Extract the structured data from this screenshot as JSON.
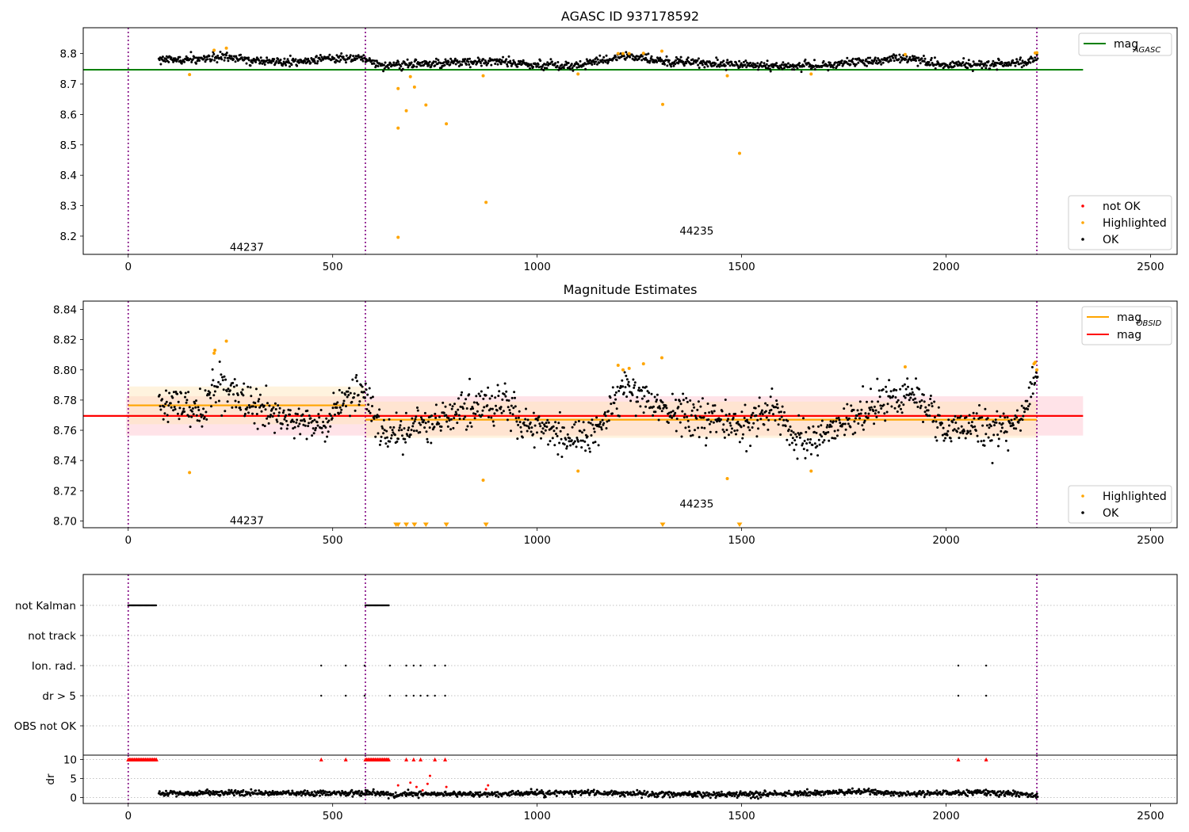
{
  "figure": {
    "colors": {
      "ok": "#000000",
      "highlighted": "#ffa500",
      "not_ok": "#ff0000",
      "mag_agasc_line": "#008000",
      "mag_line": "#ff0000",
      "mag_obsid_line": "#ffa500",
      "obs_boundary": "#800080",
      "mag_band": "#ffc0cb",
      "obsid_band": "#ffe4b5"
    }
  },
  "chart_data": [
    {
      "type": "scatter",
      "title": "AGASC ID 937178592",
      "xlabel": "",
      "ylabel": "",
      "xlim": [
        -110,
        2565
      ],
      "ylim": [
        8.14,
        8.885
      ],
      "x_ticks": [
        0,
        500,
        1000,
        1500,
        2000,
        2500
      ],
      "y_ticks": [
        8.2,
        8.3,
        8.4,
        8.5,
        8.6,
        8.7,
        8.8
      ],
      "y_tick_labels": [
        "8.2",
        "8.3",
        "8.4",
        "8.5",
        "8.6",
        "8.7",
        "8.8"
      ],
      "grid": false,
      "obs_boundaries": [
        0,
        580,
        2222
      ],
      "obsid_labels": [
        {
          "text": "44237",
          "x": 290,
          "y": 8.165
        },
        {
          "text": "44235",
          "x": 1390,
          "y": 8.218
        }
      ],
      "lines": [
        {
          "name": "mag",
          "sub": "AGASC",
          "y": 8.747,
          "x_range": [
            -110,
            2335
          ],
          "color": "#008000"
        }
      ],
      "legend_top": {
        "placement": "upper right",
        "entries": [
          {
            "label": "mag",
            "sub": "AGASC",
            "kind": "line",
            "color": "#008000"
          }
        ]
      },
      "legend_bottom": {
        "placement": "lower right",
        "entries": [
          {
            "label": "not OK",
            "kind": "point",
            "color": "#ff0000"
          },
          {
            "label": "Highlighted",
            "kind": "point",
            "color": "#ffa500"
          },
          {
            "label": "OK",
            "kind": "point",
            "color": "#000000"
          }
        ]
      },
      "ok_trend": {
        "description_points": [
          [
            75,
            8.778
          ],
          [
            160,
            8.782
          ],
          [
            220,
            8.792
          ],
          [
            300,
            8.776
          ],
          [
            400,
            8.772
          ],
          [
            500,
            8.785
          ],
          [
            575,
            8.785
          ],
          [
            625,
            8.758
          ],
          [
            700,
            8.765
          ],
          [
            800,
            8.772
          ],
          [
            900,
            8.775
          ],
          [
            1000,
            8.762
          ],
          [
            1100,
            8.762
          ],
          [
            1220,
            8.795
          ],
          [
            1300,
            8.776
          ],
          [
            1400,
            8.77
          ],
          [
            1500,
            8.765
          ],
          [
            1600,
            8.758
          ],
          [
            1700,
            8.76
          ],
          [
            1800,
            8.775
          ],
          [
            1900,
            8.785
          ],
          [
            2000,
            8.762
          ],
          [
            2100,
            8.765
          ],
          [
            2200,
            8.772
          ],
          [
            2222,
            8.795
          ]
        ],
        "x_range": [
          75,
          2225
        ],
        "spread": 0.012
      },
      "highlighted_points": [
        [
          150,
          8.731
        ],
        [
          210,
          8.811
        ],
        [
          240,
          8.818
        ],
        [
          660,
          8.555
        ],
        [
          660,
          8.685
        ],
        [
          660,
          8.196
        ],
        [
          680,
          8.612
        ],
        [
          690,
          8.724
        ],
        [
          700,
          8.69
        ],
        [
          728,
          8.631
        ],
        [
          778,
          8.569
        ],
        [
          868,
          8.727
        ],
        [
          875,
          8.311
        ],
        [
          1100,
          8.733
        ],
        [
          1198,
          8.8
        ],
        [
          1210,
          8.8
        ],
        [
          1225,
          8.8
        ],
        [
          1260,
          8.801
        ],
        [
          1305,
          8.808
        ],
        [
          1307,
          8.633
        ],
        [
          1465,
          8.727
        ],
        [
          1495,
          8.472
        ],
        [
          1670,
          8.733
        ],
        [
          1900,
          8.797
        ],
        [
          2218,
          8.802
        ],
        [
          2222,
          8.803
        ]
      ]
    },
    {
      "type": "scatter",
      "title": "Magnitude Estimates",
      "xlabel": "",
      "ylabel": "",
      "xlim": [
        -110,
        2565
      ],
      "ylim": [
        8.6955,
        8.8455
      ],
      "x_ticks": [
        0,
        500,
        1000,
        1500,
        2000,
        2500
      ],
      "y_ticks": [
        8.7,
        8.72,
        8.74,
        8.76,
        8.78,
        8.8,
        8.82,
        8.84
      ],
      "y_tick_labels": [
        "8.70",
        "8.72",
        "8.74",
        "8.76",
        "8.78",
        "8.80",
        "8.82",
        "8.84"
      ],
      "grid": false,
      "obs_boundaries": [
        0,
        580,
        2222
      ],
      "obsid_labels": [
        {
          "text": "44237",
          "x": 290,
          "y": 8.7005
        },
        {
          "text": "44235",
          "x": 1390,
          "y": 8.7115
        }
      ],
      "bands": [
        {
          "name": "mag",
          "y_low": 8.7565,
          "y_high": 8.7825,
          "x_range": [
            -5,
            2335
          ],
          "color": "#ffc0cb"
        },
        {
          "name": "obsid 44237",
          "y_low": 8.764,
          "y_high": 8.789,
          "x_range": [
            0,
            580
          ],
          "color": "#ffe4b5"
        },
        {
          "name": "obsid 44235",
          "y_low": 8.755,
          "y_high": 8.779,
          "x_range": [
            580,
            2222
          ],
          "color": "#ffe4b5"
        }
      ],
      "lines": [
        {
          "name": "mag",
          "sub": "OBSID",
          "y": 8.7765,
          "x_range": [
            0,
            580
          ],
          "color": "#ffa500"
        },
        {
          "name": "mag",
          "sub": "OBSID",
          "y": 8.767,
          "x_range": [
            580,
            2222
          ],
          "color": "#ffa500"
        },
        {
          "name": "mag",
          "y": 8.7695,
          "x_range": [
            -110,
            2335
          ],
          "color": "#ff0000"
        }
      ],
      "legend_top": {
        "placement": "upper right",
        "entries": [
          {
            "label": "mag",
            "sub": "OBSID",
            "kind": "line",
            "color": "#ffa500"
          },
          {
            "label": "mag",
            "kind": "line",
            "color": "#ff0000"
          }
        ]
      },
      "legend_bottom": {
        "placement": "lower right",
        "entries": [
          {
            "label": "Highlighted",
            "kind": "point",
            "color": "#ffa500"
          },
          {
            "label": "OK",
            "kind": "point",
            "color": "#000000"
          }
        ]
      },
      "ok_trend": {
        "description_points": [
          [
            75,
            8.775
          ],
          [
            130,
            8.778
          ],
          [
            180,
            8.77
          ],
          [
            220,
            8.792
          ],
          [
            260,
            8.782
          ],
          [
            300,
            8.777
          ],
          [
            360,
            8.768
          ],
          [
            420,
            8.764
          ],
          [
            480,
            8.763
          ],
          [
            520,
            8.778
          ],
          [
            575,
            8.786
          ],
          [
            620,
            8.758
          ],
          [
            660,
            8.755
          ],
          [
            700,
            8.762
          ],
          [
            760,
            8.765
          ],
          [
            800,
            8.773
          ],
          [
            860,
            8.775
          ],
          [
            920,
            8.78
          ],
          [
            960,
            8.762
          ],
          [
            1020,
            8.762
          ],
          [
            1080,
            8.752
          ],
          [
            1120,
            8.755
          ],
          [
            1160,
            8.768
          ],
          [
            1220,
            8.792
          ],
          [
            1260,
            8.782
          ],
          [
            1300,
            8.775
          ],
          [
            1380,
            8.768
          ],
          [
            1460,
            8.765
          ],
          [
            1520,
            8.762
          ],
          [
            1580,
            8.775
          ],
          [
            1620,
            8.755
          ],
          [
            1660,
            8.752
          ],
          [
            1720,
            8.762
          ],
          [
            1780,
            8.768
          ],
          [
            1840,
            8.778
          ],
          [
            1900,
            8.785
          ],
          [
            1960,
            8.772
          ],
          [
            2000,
            8.76
          ],
          [
            2060,
            8.762
          ],
          [
            2120,
            8.762
          ],
          [
            2180,
            8.765
          ],
          [
            2222,
            8.795
          ]
        ],
        "x_range": [
          75,
          2225
        ],
        "spread": 0.01
      },
      "highlighted_points": [
        [
          150,
          8.732
        ],
        [
          210,
          8.811
        ],
        [
          212,
          8.813
        ],
        [
          240,
          8.819
        ],
        [
          868,
          8.727
        ],
        [
          1100,
          8.733
        ],
        [
          1198,
          8.803
        ],
        [
          1210,
          8.8
        ],
        [
          1225,
          8.801
        ],
        [
          1260,
          8.804
        ],
        [
          1305,
          8.808
        ],
        [
          1465,
          8.728
        ],
        [
          1670,
          8.733
        ],
        [
          1900,
          8.802
        ],
        [
          2215,
          8.804
        ],
        [
          2218,
          8.805
        ],
        [
          2222,
          8.8
        ]
      ],
      "out_of_range_markers": [
        655,
        660,
        680,
        700,
        728,
        778,
        875,
        1307,
        1495
      ]
    },
    {
      "type": "scatter",
      "title": "",
      "xlabel": "",
      "ylabel": "",
      "xlim": [
        -110,
        2565
      ],
      "flag_rows": [
        "not Kalman",
        "not track",
        "Ion. rad.",
        "dr > 5",
        "OBS not OK"
      ],
      "grid": true,
      "obs_boundaries": [
        0,
        580,
        2222
      ],
      "flags": {
        "not Kalman": {
          "x_ranges": [
            [
              0,
              70
            ],
            [
              580,
              638
            ]
          ]
        },
        "not track": {
          "x_ranges": []
        },
        "Ion. rad.": {
          "x": [
            472,
            532,
            578,
            640,
            680,
            698,
            715,
            750,
            775,
            2030,
            2098
          ]
        },
        "dr > 5": {
          "x": [
            472,
            532,
            578,
            640,
            680,
            698,
            715,
            732,
            750,
            775,
            2030,
            2098
          ]
        },
        "OBS not OK": {
          "x": []
        }
      }
    },
    {
      "type": "scatter",
      "title": "",
      "xlabel": "",
      "ylabel": "dr",
      "xlim": [
        -110,
        2565
      ],
      "ylim": [
        -0.5,
        10.5
      ],
      "x_ticks": [
        0,
        500,
        1000,
        1500,
        2000,
        2500
      ],
      "y_ticks": [
        0,
        5,
        10
      ],
      "y_tick_labels": [
        "0",
        "5",
        "10"
      ],
      "grid": true,
      "obs_boundaries": [
        0,
        580,
        2222
      ],
      "clipped_markers": {
        "y": 10,
        "x_ranges": [
          [
            0,
            70
          ],
          [
            580,
            638
          ]
        ],
        "x": [
          472,
          532,
          680,
          698,
          715,
          750,
          775,
          2030,
          2098
        ],
        "color": "#ff0000"
      },
      "points": [
        [
          660,
          3.2
        ],
        [
          690,
          3.9
        ],
        [
          705,
          2.8
        ],
        [
          720,
          1.9
        ],
        [
          732,
          3.6
        ],
        [
          738,
          5.7
        ],
        [
          778,
          2.8
        ],
        [
          875,
          2.2
        ],
        [
          880,
          3.2
        ]
      ],
      "ok_trend": {
        "description_points": [
          [
            75,
            1.0
          ],
          [
            200,
            1.3
          ],
          [
            400,
            1.1
          ],
          [
            575,
            1.2
          ],
          [
            640,
            0.9
          ],
          [
            900,
            1.0
          ],
          [
            1100,
            1.3
          ],
          [
            1300,
            0.9
          ],
          [
            1500,
            0.8
          ],
          [
            1700,
            1.2
          ],
          [
            1800,
            1.6
          ],
          [
            1900,
            1.0
          ],
          [
            2000,
            1.2
          ],
          [
            2100,
            1.4
          ],
          [
            2222,
            0.6
          ]
        ],
        "x_range": [
          75,
          2225
        ],
        "spread": 0.6
      }
    }
  ]
}
